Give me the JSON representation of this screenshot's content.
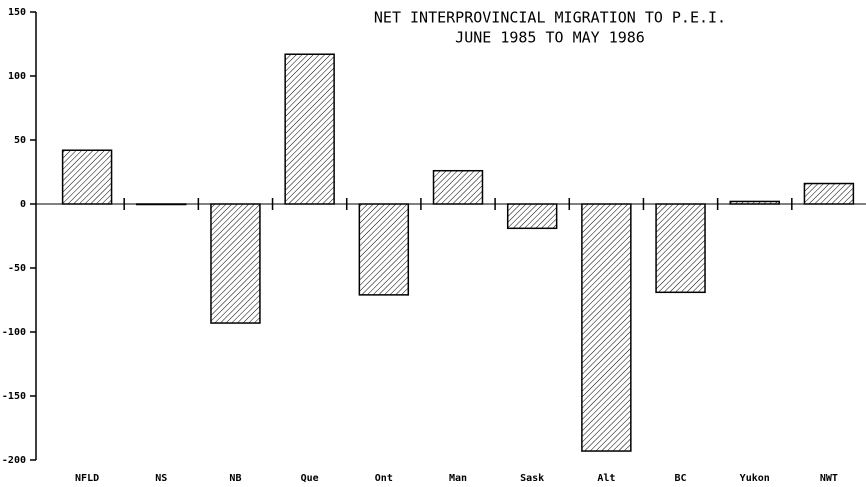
{
  "chart_data": {
    "type": "bar",
    "title": "NET INTERPROVINCIAL MIGRATION TO P.E.I.",
    "subtitle": "JUNE 1985 TO MAY 1986",
    "categories": [
      "NFLD",
      "NS",
      "NB",
      "Que",
      "Ont",
      "Man",
      "Sask",
      "Alt",
      "BC",
      "Yukon",
      "NWT"
    ],
    "values": [
      42,
      0,
      -93,
      117,
      -71,
      26,
      -19,
      -193,
      -69,
      2,
      16
    ],
    "color": "#000000",
    "ylim": [
      -200,
      150
    ],
    "yticks": [
      -200,
      -150,
      -100,
      -50,
      0,
      50,
      100,
      150
    ]
  }
}
